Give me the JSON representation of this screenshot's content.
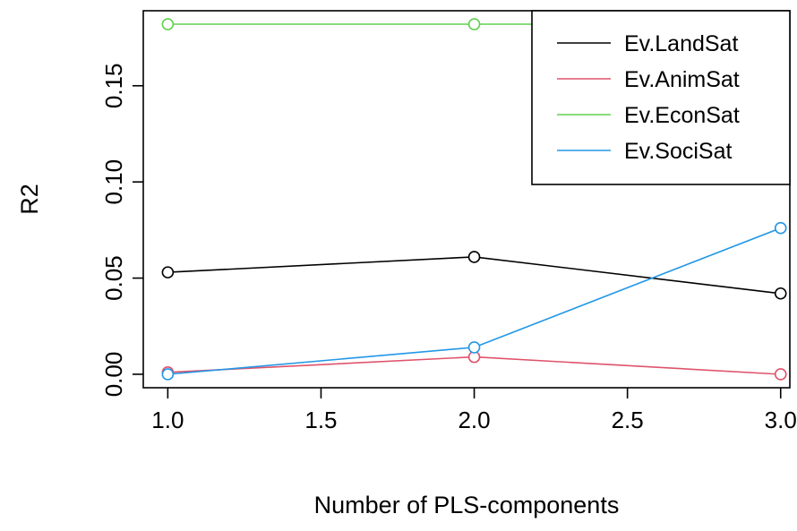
{
  "chart_data": {
    "type": "line",
    "title": "",
    "xlabel": "Number of PLS-components",
    "ylabel": "R2",
    "x": [
      1,
      2,
      3
    ],
    "xlim": [
      0.92,
      3.03
    ],
    "ylim": [
      -0.007,
      0.189
    ],
    "xticks": [
      "1.0",
      "1.5",
      "2.0",
      "2.5",
      "3.0"
    ],
    "xtick_values": [
      1.0,
      1.5,
      2.0,
      2.5,
      3.0
    ],
    "yticks": [
      "0.00",
      "0.05",
      "0.10",
      "0.15"
    ],
    "ytick_values": [
      0.0,
      0.05,
      0.1,
      0.15
    ],
    "grid": false,
    "legend": "top-right",
    "markers": "open-circle",
    "series": [
      {
        "name": "Ev.LandSat",
        "color": "#000000",
        "values": [
          0.053,
          0.061,
          0.042
        ]
      },
      {
        "name": "Ev.AnimSat",
        "color": "#DF536B",
        "values": [
          0.001,
          0.009,
          0.0
        ]
      },
      {
        "name": "Ev.EconSat",
        "color": "#61D04F",
        "values": [
          0.182,
          0.182,
          0.182
        ]
      },
      {
        "name": "Ev.SociSat",
        "color": "#2297E6",
        "values": [
          0.0,
          0.014,
          0.076
        ]
      }
    ]
  }
}
